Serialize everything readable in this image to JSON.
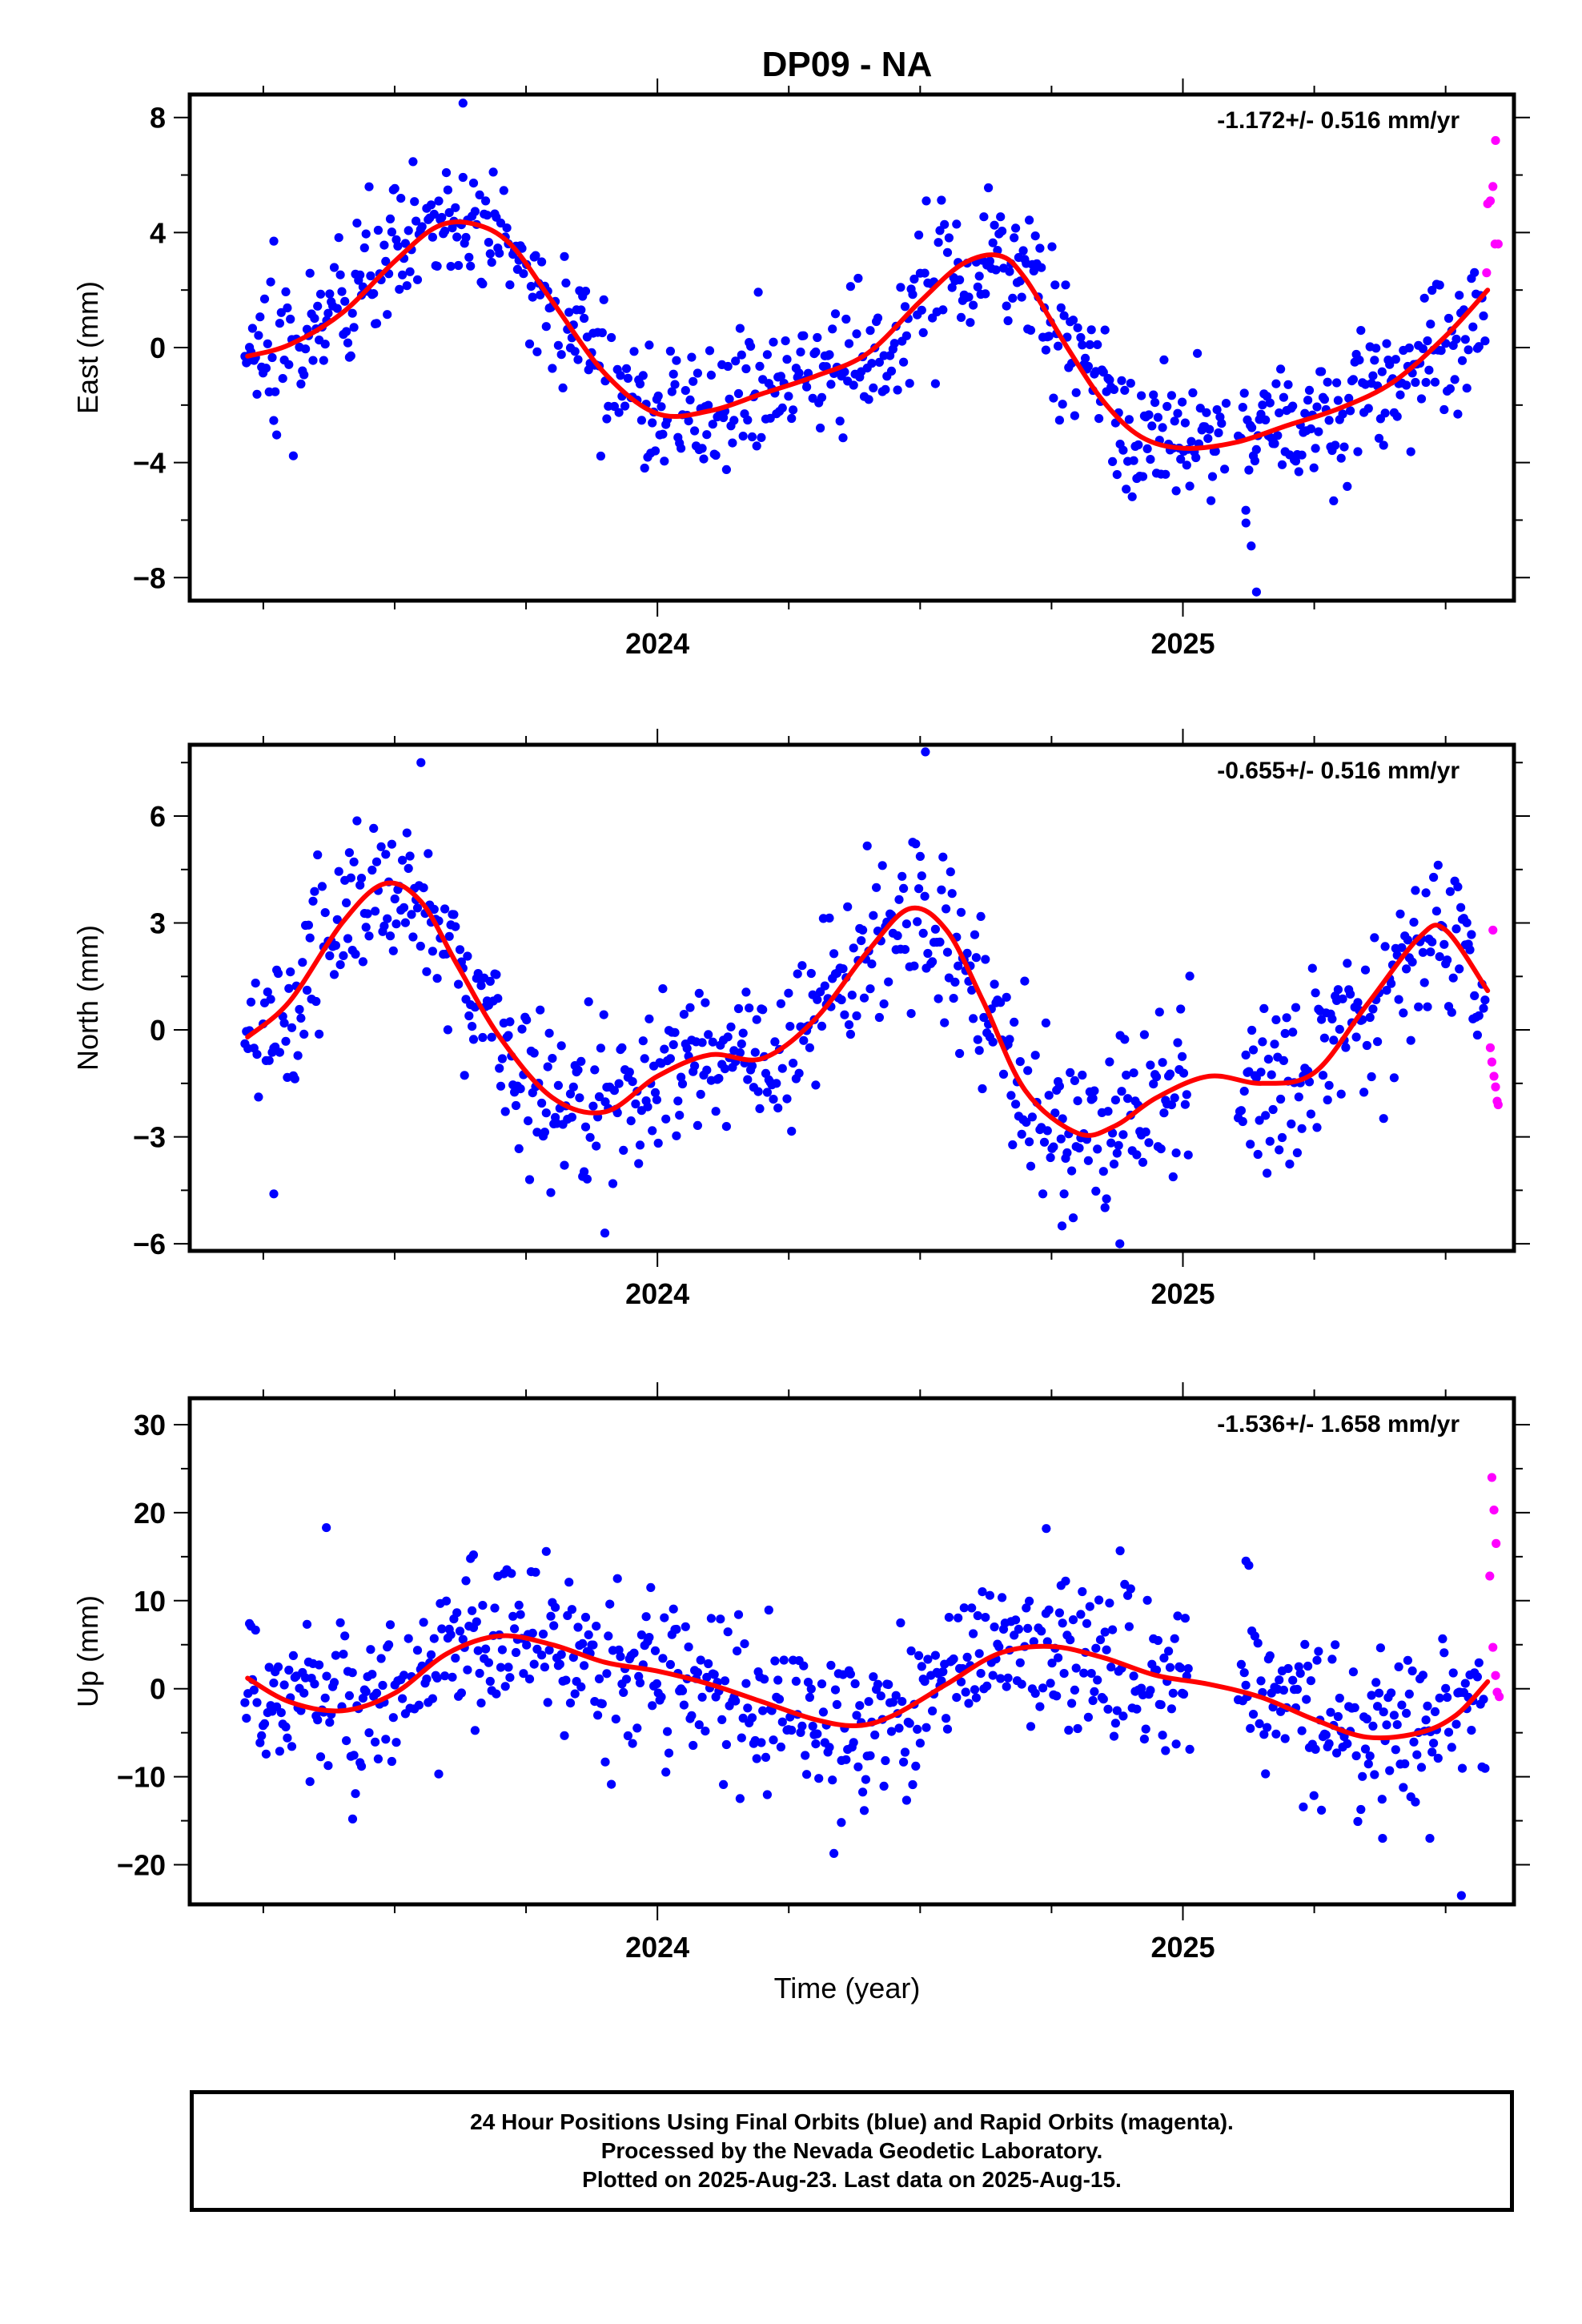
{
  "title": "DP09 - NA",
  "xlabel": "Time (year)",
  "colors": {
    "final": "#0000ff",
    "rapid": "#ff00ff",
    "fit": "#ff0000"
  },
  "footer": {
    "lines": [
      "24 Hour Positions Using Final Orbits (blue) and Rapid Orbits (magenta).",
      "Processed by the Nevada Geodetic Laboratory.",
      "Plotted on 2025-Aug-23. Last data on 2025-Aug-15."
    ]
  },
  "chart_data": [
    {
      "type": "scatter",
      "ylabel": "East (mm)",
      "rate_label": "-1.172+/- 0.516 mm/yr",
      "xlim": [
        2023.11,
        2025.63
      ],
      "ylim": [
        -8.8,
        8.8
      ],
      "yticks": [
        -8,
        -4,
        0,
        4,
        8
      ],
      "ytick_labels": [
        "−8",
        "−4",
        "0",
        "4",
        "8"
      ],
      "xticks": [
        2024,
        2025
      ],
      "xtick_labels": [
        "2024",
        "2025"
      ],
      "fit_x": [
        2023.22,
        2023.3,
        2023.4,
        2023.5,
        2023.58,
        2023.65,
        2023.72,
        2023.8,
        2023.9,
        2024.0,
        2024.1,
        2024.2,
        2024.3,
        2024.4,
        2024.5,
        2024.58,
        2024.65,
        2024.7,
        2024.78,
        2024.85,
        2024.92,
        2025.0,
        2025.1,
        2025.2,
        2025.3,
        2025.4,
        2025.5,
        2025.58
      ],
      "fit_y": [
        -0.3,
        0.1,
        1.2,
        3.0,
        4.2,
        4.3,
        3.6,
        1.6,
        -0.9,
        -2.3,
        -2.2,
        -1.6,
        -1.0,
        -0.2,
        1.6,
        2.9,
        3.2,
        2.4,
        0.0,
        -1.9,
        -3.1,
        -3.5,
        -3.3,
        -2.7,
        -2.1,
        -1.2,
        0.4,
        2.0
      ],
      "final_trend": [
        [
          2023.22,
          -0.3
        ],
        [
          2023.3,
          0.1
        ],
        [
          2023.4,
          1.2
        ],
        [
          2023.5,
          3.0
        ],
        [
          2023.58,
          4.2
        ],
        [
          2023.65,
          4.3
        ],
        [
          2023.72,
          3.6
        ],
        [
          2023.8,
          1.6
        ],
        [
          2023.9,
          -0.9
        ],
        [
          2024.0,
          -2.3
        ],
        [
          2024.1,
          -2.2
        ],
        [
          2024.2,
          -1.6
        ],
        [
          2024.3,
          -1.0
        ],
        [
          2024.4,
          -0.2
        ],
        [
          2024.5,
          1.6
        ],
        [
          2024.58,
          2.9
        ],
        [
          2024.65,
          3.2
        ],
        [
          2024.7,
          2.4
        ],
        [
          2024.78,
          0.0
        ],
        [
          2024.85,
          -1.9
        ],
        [
          2024.92,
          -3.1
        ],
        [
          2025.0,
          -3.5
        ],
        [
          2025.1,
          -3.3
        ],
        [
          2025.2,
          -2.7
        ],
        [
          2025.3,
          -2.1
        ],
        [
          2025.4,
          -1.2
        ],
        [
          2025.5,
          0.4
        ],
        [
          2025.57,
          1.4
        ]
      ],
      "gaps": [
        [
          2025.085,
          2025.105
        ]
      ],
      "scatter_sd": 1.2,
      "outliers": [
        [
          2023.63,
          8.5
        ],
        [
          2025.14,
          -8.5
        ],
        [
          2025.13,
          -6.9
        ],
        [
          2025.12,
          -6.1
        ],
        [
          2023.27,
          3.7
        ]
      ],
      "rapid": [
        [
          2025.595,
          7.2
        ],
        [
          2025.59,
          5.6
        ],
        [
          2025.585,
          5.1
        ],
        [
          2025.58,
          5.0
        ],
        [
          2025.6,
          3.6
        ],
        [
          2025.594,
          3.6
        ],
        [
          2025.578,
          2.6
        ]
      ]
    },
    {
      "type": "scatter",
      "ylabel": "North (mm)",
      "rate_label": "-0.655+/- 0.516 mm/yr",
      "xlim": [
        2023.11,
        2025.63
      ],
      "ylim": [
        -6.2,
        8.0
      ],
      "yticks": [
        -6,
        -3,
        0,
        3,
        6
      ],
      "ytick_labels": [
        "−6",
        "−3",
        "0",
        "3",
        "6"
      ],
      "xticks": [
        2024,
        2025
      ],
      "xtick_labels": [
        "2024",
        "2025"
      ],
      "fit_x": [
        2023.22,
        2023.3,
        2023.4,
        2023.48,
        2023.55,
        2023.62,
        2023.7,
        2023.8,
        2023.9,
        2024.0,
        2024.1,
        2024.2,
        2024.3,
        2024.4,
        2024.48,
        2024.55,
        2024.62,
        2024.7,
        2024.8,
        2024.87,
        2024.95,
        2025.05,
        2025.15,
        2025.25,
        2025.35,
        2025.45,
        2025.5,
        2025.58
      ],
      "fit_y": [
        -0.2,
        0.8,
        3.0,
        4.1,
        3.6,
        1.8,
        -0.2,
        -1.9,
        -2.3,
        -1.3,
        -0.7,
        -0.8,
        0.3,
        2.2,
        3.4,
        2.8,
        0.8,
        -1.7,
        -2.9,
        -2.7,
        -1.9,
        -1.3,
        -1.5,
        -1.2,
        0.7,
        2.6,
        2.8,
        1.1
      ],
      "final_trend": [
        [
          2023.22,
          -0.2
        ],
        [
          2023.3,
          0.8
        ],
        [
          2023.4,
          3.0
        ],
        [
          2023.48,
          4.1
        ],
        [
          2023.55,
          3.6
        ],
        [
          2023.62,
          1.8
        ],
        [
          2023.7,
          -0.2
        ],
        [
          2023.8,
          -1.9
        ],
        [
          2023.9,
          -2.3
        ],
        [
          2024.0,
          -1.3
        ],
        [
          2024.1,
          -0.7
        ],
        [
          2024.2,
          -0.8
        ],
        [
          2024.3,
          0.3
        ],
        [
          2024.4,
          2.2
        ],
        [
          2024.48,
          3.4
        ],
        [
          2024.55,
          2.8
        ],
        [
          2024.62,
          0.8
        ],
        [
          2024.7,
          -1.7
        ],
        [
          2024.8,
          -2.9
        ],
        [
          2024.87,
          -2.7
        ],
        [
          2024.95,
          -1.9
        ],
        [
          2025.05,
          -1.3
        ],
        [
          2025.15,
          -1.5
        ],
        [
          2025.25,
          -1.2
        ],
        [
          2025.35,
          0.7
        ],
        [
          2025.45,
          2.6
        ],
        [
          2025.5,
          2.8
        ],
        [
          2025.57,
          1.4
        ]
      ],
      "gaps": [
        [
          2025.015,
          2025.105
        ]
      ],
      "scatter_sd": 1.2,
      "outliers": [
        [
          2024.51,
          7.8
        ],
        [
          2023.27,
          -4.6
        ],
        [
          2023.9,
          -5.7
        ],
        [
          2024.77,
          -5.5
        ],
        [
          2024.88,
          -6.0
        ],
        [
          2023.55,
          7.5
        ]
      ],
      "rapid": [
        [
          2025.59,
          2.8
        ],
        [
          2025.585,
          -0.5
        ],
        [
          2025.588,
          -0.9
        ],
        [
          2025.592,
          -1.3
        ],
        [
          2025.595,
          -1.6
        ],
        [
          2025.598,
          -2.0
        ],
        [
          2025.6,
          -2.1
        ]
      ]
    },
    {
      "type": "scatter",
      "ylabel": "Up (mm)",
      "rate_label": "-1.536+/- 1.658 mm/yr",
      "xlim": [
        2023.11,
        2025.63
      ],
      "ylim": [
        -24.5,
        33.0
      ],
      "yticks": [
        -20,
        -10,
        0,
        10,
        20,
        30
      ],
      "ytick_labels": [
        "−20",
        "−10",
        "0",
        "10",
        "20",
        "30"
      ],
      "xticks": [
        2024,
        2025
      ],
      "xtick_labels": [
        "2024",
        "2025"
      ],
      "fit_x": [
        2023.22,
        2023.3,
        2023.4,
        2023.5,
        2023.6,
        2023.7,
        2023.8,
        2023.9,
        2024.0,
        2024.1,
        2024.2,
        2024.3,
        2024.38,
        2024.45,
        2024.55,
        2024.65,
        2024.75,
        2024.85,
        2024.95,
        2025.05,
        2025.15,
        2025.25,
        2025.35,
        2025.45,
        2025.52,
        2025.58
      ],
      "fit_y": [
        1.2,
        -1.5,
        -2.5,
        -0.5,
        4.0,
        6.0,
        5.0,
        3.0,
        2.0,
        0.5,
        -1.5,
        -3.5,
        -4.2,
        -3.0,
        0.5,
        4.0,
        4.8,
        3.5,
        1.5,
        0.5,
        -1.0,
        -3.5,
        -5.5,
        -5.0,
        -3.0,
        0.8
      ],
      "final_trend": [
        [
          2023.22,
          1.2
        ],
        [
          2023.3,
          -1.5
        ],
        [
          2023.4,
          -2.5
        ],
        [
          2023.5,
          -0.5
        ],
        [
          2023.6,
          4.0
        ],
        [
          2023.7,
          6.0
        ],
        [
          2023.8,
          5.0
        ],
        [
          2023.9,
          3.0
        ],
        [
          2024.0,
          2.0
        ],
        [
          2024.1,
          0.5
        ],
        [
          2024.2,
          -1.5
        ],
        [
          2024.3,
          -3.5
        ],
        [
          2024.38,
          -4.2
        ],
        [
          2024.45,
          -3.0
        ],
        [
          2024.55,
          0.5
        ],
        [
          2024.65,
          4.0
        ],
        [
          2024.75,
          4.8
        ],
        [
          2024.85,
          3.5
        ],
        [
          2024.95,
          1.5
        ],
        [
          2025.05,
          0.5
        ],
        [
          2025.15,
          -1.0
        ],
        [
          2025.25,
          -3.5
        ],
        [
          2025.35,
          -5.5
        ],
        [
          2025.45,
          -5.0
        ],
        [
          2025.52,
          -3.0
        ],
        [
          2025.57,
          -1.0
        ]
      ],
      "gaps": [
        [
          2025.015,
          2025.105
        ]
      ],
      "scatter_sd": 4.5,
      "outliers": [
        [
          2023.37,
          18.3
        ],
        [
          2023.65,
          15.2
        ],
        [
          2024.74,
          18.2
        ],
        [
          2024.35,
          -15.2
        ],
        [
          2025.53,
          -23.5
        ],
        [
          2025.47,
          -17.0
        ],
        [
          2025.38,
          -17.0
        ],
        [
          2025.12,
          14.5
        ],
        [
          2023.42,
          -14.8
        ]
      ],
      "rapid": [
        [
          2025.588,
          24.0
        ],
        [
          2025.592,
          20.3
        ],
        [
          2025.596,
          16.5
        ],
        [
          2025.584,
          12.8
        ],
        [
          2025.59,
          4.7
        ],
        [
          2025.595,
          1.5
        ],
        [
          2025.598,
          -0.4
        ],
        [
          2025.602,
          -0.9
        ]
      ]
    }
  ]
}
